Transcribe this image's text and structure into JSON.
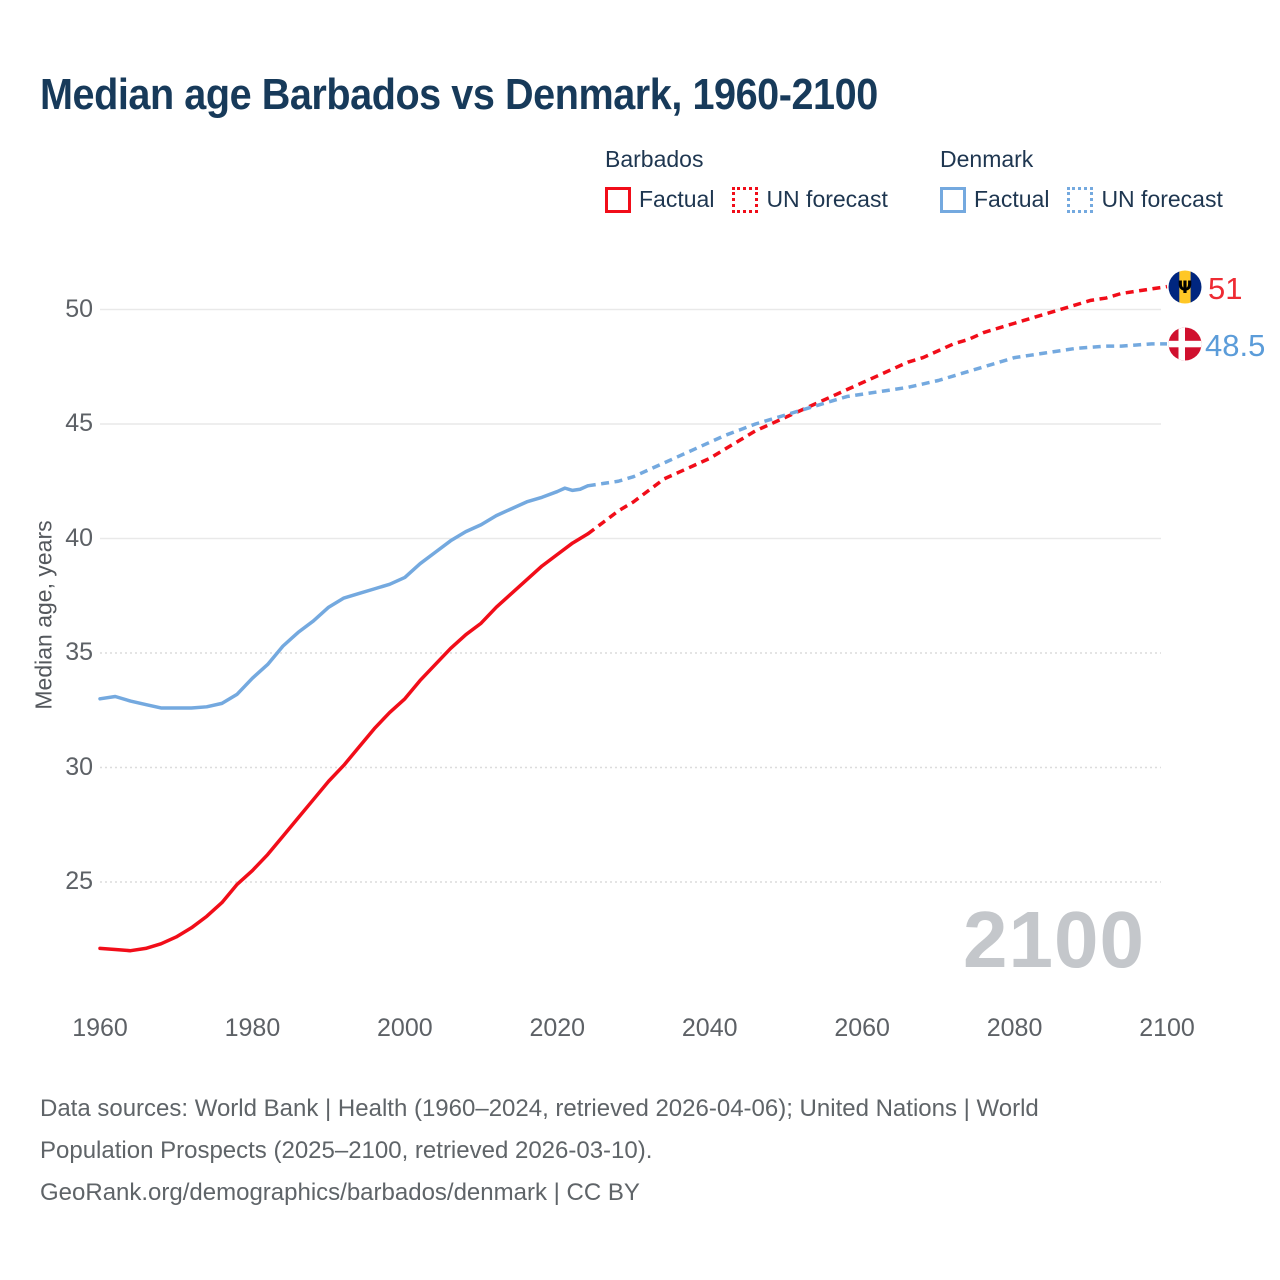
{
  "title": "Median age Barbados vs Denmark, 1960-2100",
  "legend": {
    "groups": [
      {
        "label": "Barbados",
        "color": "#f10d19",
        "items": [
          {
            "label": "Factual",
            "style": "solid"
          },
          {
            "label": "UN forecast",
            "style": "dotted"
          }
        ]
      },
      {
        "label": "Denmark",
        "color": "#74a9df",
        "items": [
          {
            "label": "Factual",
            "style": "solid"
          },
          {
            "label": "UN forecast",
            "style": "dotted"
          }
        ]
      }
    ]
  },
  "watermark": "2100",
  "end_labels": [
    {
      "country": "Barbados",
      "value": "51",
      "color": "#ee2b33",
      "icon": "barbados-flag-icon",
      "flag_colors": {
        "band": "#00267F",
        "center": "#FFC726",
        "trident_glyph": "Ψ",
        "trident_color": "#000000"
      }
    },
    {
      "country": "Denmark",
      "value": "48.5",
      "color": "#5b9cd9",
      "icon": "denmark-flag-icon",
      "flag_colors": {
        "field": "#d0102e",
        "cross": "#ffffff"
      }
    }
  ],
  "footer": {
    "lines": [
      "Data sources: World Bank | Health (1960–2024, retrieved 2026-04-06); United Nations | World",
      "Population Prospects (2025–2100, retrieved 2026-03-10).",
      "GeoRank.org/demographics/barbados/denmark | CC BY"
    ]
  },
  "colors": {
    "barbados_line": "#f10d19",
    "denmark_line": "#74a9df",
    "title_text": "#173a5a",
    "legend_text": "#1e3650",
    "axis_text": "#5d6166",
    "footer_text": "#5f6468",
    "watermark_text": "#c4c7cb",
    "grid_solid": "#e9e9e9",
    "grid_dotted": "#dcdcdc"
  },
  "chart_data": {
    "type": "line",
    "title": "Median age Barbados vs Denmark, 1960-2100",
    "xlabel": "",
    "ylabel": "Median age, years",
    "x_ticks": [
      1960,
      1980,
      2000,
      2020,
      2040,
      2060,
      2080,
      2100
    ],
    "y_ticks": [
      25,
      30,
      35,
      40,
      45,
      50
    ],
    "xlim": [
      1960,
      2100
    ],
    "ylim": [
      21,
      52
    ],
    "grid": "horizontal-only",
    "legend_position": "top",
    "series": [
      {
        "name": "Barbados Factual",
        "country": "Barbados",
        "phase": "factual",
        "style": "solid",
        "color": "#f10d19",
        "x": [
          1960,
          1962,
          1964,
          1966,
          1968,
          1970,
          1972,
          1974,
          1976,
          1978,
          1980,
          1982,
          1984,
          1986,
          1988,
          1990,
          1992,
          1994,
          1996,
          1998,
          2000,
          2002,
          2004,
          2006,
          2008,
          2010,
          2012,
          2014,
          2016,
          2018,
          2020,
          2022,
          2024
        ],
        "y": [
          22.1,
          22.05,
          22.0,
          22.1,
          22.3,
          22.6,
          23.0,
          23.5,
          24.1,
          24.9,
          25.5,
          26.2,
          27.0,
          27.8,
          28.6,
          29.4,
          30.1,
          30.9,
          31.7,
          32.4,
          33.0,
          33.8,
          34.5,
          35.2,
          35.8,
          36.3,
          37.0,
          37.6,
          38.2,
          38.8,
          39.3,
          39.8,
          40.2
        ]
      },
      {
        "name": "Barbados UN forecast",
        "country": "Barbados",
        "phase": "forecast",
        "style": "dashed",
        "color": "#f10d19",
        "x": [
          2024,
          2026,
          2028,
          2030,
          2032,
          2034,
          2036,
          2038,
          2040,
          2042,
          2044,
          2046,
          2048,
          2050,
          2052,
          2054,
          2056,
          2058,
          2060,
          2062,
          2064,
          2066,
          2068,
          2070,
          2072,
          2074,
          2076,
          2078,
          2080,
          2082,
          2084,
          2086,
          2088,
          2090,
          2092,
          2094,
          2096,
          2098,
          2100
        ],
        "y": [
          40.2,
          40.7,
          41.2,
          41.6,
          42.1,
          42.6,
          42.9,
          43.2,
          43.5,
          43.9,
          44.3,
          44.7,
          45.0,
          45.3,
          45.6,
          45.9,
          46.2,
          46.5,
          46.8,
          47.1,
          47.4,
          47.7,
          47.9,
          48.2,
          48.5,
          48.7,
          49.0,
          49.2,
          49.4,
          49.6,
          49.8,
          50.0,
          50.2,
          50.4,
          50.5,
          50.7,
          50.8,
          50.9,
          51.0
        ]
      },
      {
        "name": "Denmark Factual",
        "country": "Denmark",
        "phase": "factual",
        "style": "solid",
        "color": "#74a9df",
        "x": [
          1960,
          1962,
          1964,
          1966,
          1968,
          1970,
          1972,
          1974,
          1976,
          1978,
          1980,
          1982,
          1984,
          1986,
          1988,
          1990,
          1992,
          1994,
          1996,
          1998,
          2000,
          2002,
          2004,
          2006,
          2008,
          2010,
          2012,
          2014,
          2016,
          2018,
          2020,
          2021,
          2022,
          2023,
          2024
        ],
        "y": [
          33.0,
          33.1,
          32.9,
          32.75,
          32.6,
          32.6,
          32.6,
          32.65,
          32.8,
          33.2,
          33.9,
          34.5,
          35.3,
          35.9,
          36.4,
          37.0,
          37.4,
          37.6,
          37.8,
          38.0,
          38.3,
          38.9,
          39.4,
          39.9,
          40.3,
          40.6,
          41.0,
          41.3,
          41.6,
          41.8,
          42.05,
          42.2,
          42.1,
          42.15,
          42.3
        ]
      },
      {
        "name": "Denmark UN forecast",
        "country": "Denmark",
        "phase": "forecast",
        "style": "dashed",
        "color": "#74a9df",
        "x": [
          2024,
          2026,
          2028,
          2030,
          2032,
          2034,
          2036,
          2038,
          2040,
          2042,
          2044,
          2046,
          2048,
          2050,
          2052,
          2054,
          2056,
          2058,
          2060,
          2062,
          2064,
          2066,
          2068,
          2070,
          2072,
          2074,
          2076,
          2078,
          2080,
          2082,
          2084,
          2086,
          2088,
          2090,
          2092,
          2094,
          2096,
          2098,
          2100
        ],
        "y": [
          42.3,
          42.4,
          42.5,
          42.7,
          43.0,
          43.3,
          43.6,
          43.9,
          44.2,
          44.5,
          44.75,
          45.0,
          45.2,
          45.4,
          45.6,
          45.8,
          46.0,
          46.2,
          46.3,
          46.4,
          46.5,
          46.6,
          46.75,
          46.9,
          47.1,
          47.3,
          47.5,
          47.7,
          47.9,
          48.0,
          48.1,
          48.2,
          48.3,
          48.35,
          48.4,
          48.4,
          48.45,
          48.5,
          48.5
        ]
      }
    ],
    "end_values": {
      "Barbados": 51,
      "Denmark": 48.5
    }
  }
}
